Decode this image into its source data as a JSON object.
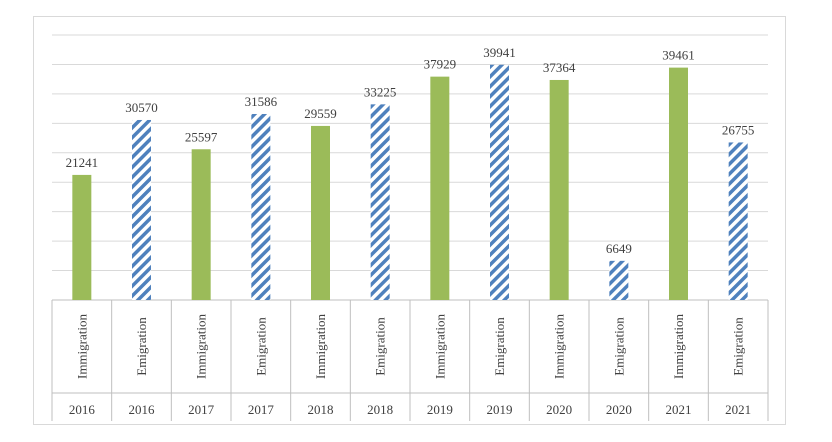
{
  "chart_data": {
    "type": "bar",
    "title": "",
    "xlabel": "",
    "ylabel": "",
    "ylim": [
      0,
      45000
    ],
    "grid": true,
    "legend": "none",
    "categories": [
      {
        "label": "Immigration",
        "year": "2016"
      },
      {
        "label": "Emigration",
        "year": "2016"
      },
      {
        "label": "Immigration",
        "year": "2017"
      },
      {
        "label": "Emigration",
        "year": "2017"
      },
      {
        "label": "Immigration",
        "year": "2018"
      },
      {
        "label": "Emigration",
        "year": "2018"
      },
      {
        "label": "Immigration",
        "year": "2019"
      },
      {
        "label": "Emigration",
        "year": "2019"
      },
      {
        "label": "Immigration",
        "year": "2020"
      },
      {
        "label": "Emigration",
        "year": "2020"
      },
      {
        "label": "Immigration",
        "year": "2021"
      },
      {
        "label": "Emigration",
        "year": "2021"
      }
    ],
    "values": [
      21241,
      30570,
      25597,
      31586,
      29559,
      33225,
      37929,
      39941,
      37364,
      6649,
      39461,
      26755
    ],
    "styles": [
      "solid",
      "hatched",
      "solid",
      "hatched",
      "solid",
      "hatched",
      "solid",
      "hatched",
      "solid",
      "hatched",
      "solid",
      "hatched"
    ],
    "colors": {
      "immigration": "#9bbb59",
      "emigration": "#4f81bd",
      "gridline": "#d9d9d9",
      "label": "#404040"
    }
  }
}
